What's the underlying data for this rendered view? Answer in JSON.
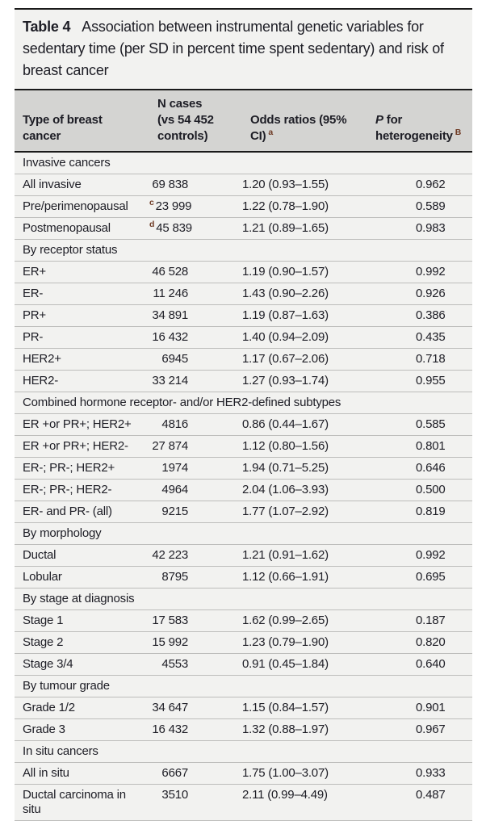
{
  "caption": {
    "label": "Table 4",
    "text": "Association between instrumental genetic variables for sedentary time (per SD in percent time spent sedentary) and risk of breast cancer"
  },
  "header": {
    "col1_lines": [
      "Type of breast",
      "cancer"
    ],
    "col2_lines": [
      "N cases",
      "(vs 54 452",
      "controls)"
    ],
    "col3_lines": [
      "Odds ratios (95%",
      "CI)"
    ],
    "col3_sup": "a",
    "col4_p": "P",
    "col4_rest": "for",
    "col4_line2": "heterogeneity",
    "col4_sup": "B"
  },
  "rows": [
    {
      "section": "Invasive cancers"
    },
    {
      "name": "All invasive",
      "sup": "",
      "n": "69 838",
      "or": "1.20 (0.93–1.55)",
      "p": "0.962"
    },
    {
      "name": "Pre/perimenopausal",
      "sup": "c",
      "n": "23 999",
      "or": "1.22 (0.78–1.90)",
      "p": "0.589"
    },
    {
      "name": "Postmenopausal",
      "sup": "d",
      "n": "45 839",
      "or": "1.21 (0.89–1.65)",
      "p": "0.983"
    },
    {
      "section": "By receptor status"
    },
    {
      "name": "ER+",
      "sup": "",
      "n": "46 528",
      "or": "1.19 (0.90–1.57)",
      "p": "0.992"
    },
    {
      "name": "ER-",
      "sup": "",
      "n": "11 246",
      "or": "1.43 (0.90–2.26)",
      "p": "0.926"
    },
    {
      "name": "PR+",
      "sup": "",
      "n": "34 891",
      "or": "1.19 (0.87–1.63)",
      "p": "0.386"
    },
    {
      "name": "PR-",
      "sup": "",
      "n": "16 432",
      "or": "1.40 (0.94–2.09)",
      "p": "0.435"
    },
    {
      "name": "HER2+",
      "sup": "",
      "n": "6945",
      "or": "1.17 (0.67–2.06)",
      "p": "0.718"
    },
    {
      "name": "HER2-",
      "sup": "",
      "n": "33 214",
      "or": "1.27 (0.93–1.74)",
      "p": "0.955"
    },
    {
      "section": "Combined hormone receptor- and/or HER2-defined subtypes"
    },
    {
      "name": "ER +or PR+; HER2+",
      "sup": "",
      "n": "4816",
      "or": "0.86 (0.44–1.67)",
      "p": "0.585"
    },
    {
      "name": "ER +or PR+; HER2-",
      "sup": "",
      "n": "27 874",
      "or": "1.12 (0.80–1.56)",
      "p": "0.801"
    },
    {
      "name": "ER-; PR-; HER2+",
      "sup": "",
      "n": "1974",
      "or": "1.94 (0.71–5.25)",
      "p": "0.646"
    },
    {
      "name": "ER-; PR-; HER2-",
      "sup": "",
      "n": "4964",
      "or": "2.04 (1.06–3.93)",
      "p": "0.500"
    },
    {
      "name": "ER- and PR- (all)",
      "sup": "",
      "n": "9215",
      "or": "1.77 (1.07–2.92)",
      "p": "0.819"
    },
    {
      "section": "By morphology"
    },
    {
      "name": "Ductal",
      "sup": "",
      "n": "42 223",
      "or": "1.21 (0.91–1.62)",
      "p": "0.992"
    },
    {
      "name": "Lobular",
      "sup": "",
      "n": "8795",
      "or": "1.12 (0.66–1.91)",
      "p": "0.695"
    },
    {
      "section": "By stage at diagnosis"
    },
    {
      "name": "Stage 1",
      "sup": "",
      "n": "17 583",
      "or": "1.62 (0.99–2.65)",
      "p": "0.187"
    },
    {
      "name": "Stage 2",
      "sup": "",
      "n": "15 992",
      "or": "1.23 (0.79–1.90)",
      "p": "0.820"
    },
    {
      "name": "Stage 3/4",
      "sup": "",
      "n": "4553",
      "or": "0.91 (0.45–1.84)",
      "p": "0.640"
    },
    {
      "section": "By tumour grade"
    },
    {
      "name": "Grade 1/2",
      "sup": "",
      "n": "34 647",
      "or": "1.15 (0.84–1.57)",
      "p": "0.901"
    },
    {
      "name": "Grade 3",
      "sup": "",
      "n": "16 432",
      "or": "1.32 (0.88–1.97)",
      "p": "0.967"
    },
    {
      "section": "In situ cancers"
    },
    {
      "name": "All in situ",
      "sup": "",
      "n": "6667",
      "or": "1.75 (1.00–3.07)",
      "p": "0.933"
    },
    {
      "name": "Ductal carcinoma in situ",
      "sup": "",
      "n": "3510",
      "or": "2.11 (0.99–4.49)",
      "p": "0.487"
    }
  ],
  "colors": {
    "header_bg": "#d4d4d2",
    "stripe_bg": "#f2f2f0",
    "rule_black": "#1a1a1a",
    "footnote_marker": "#6e3a24"
  }
}
